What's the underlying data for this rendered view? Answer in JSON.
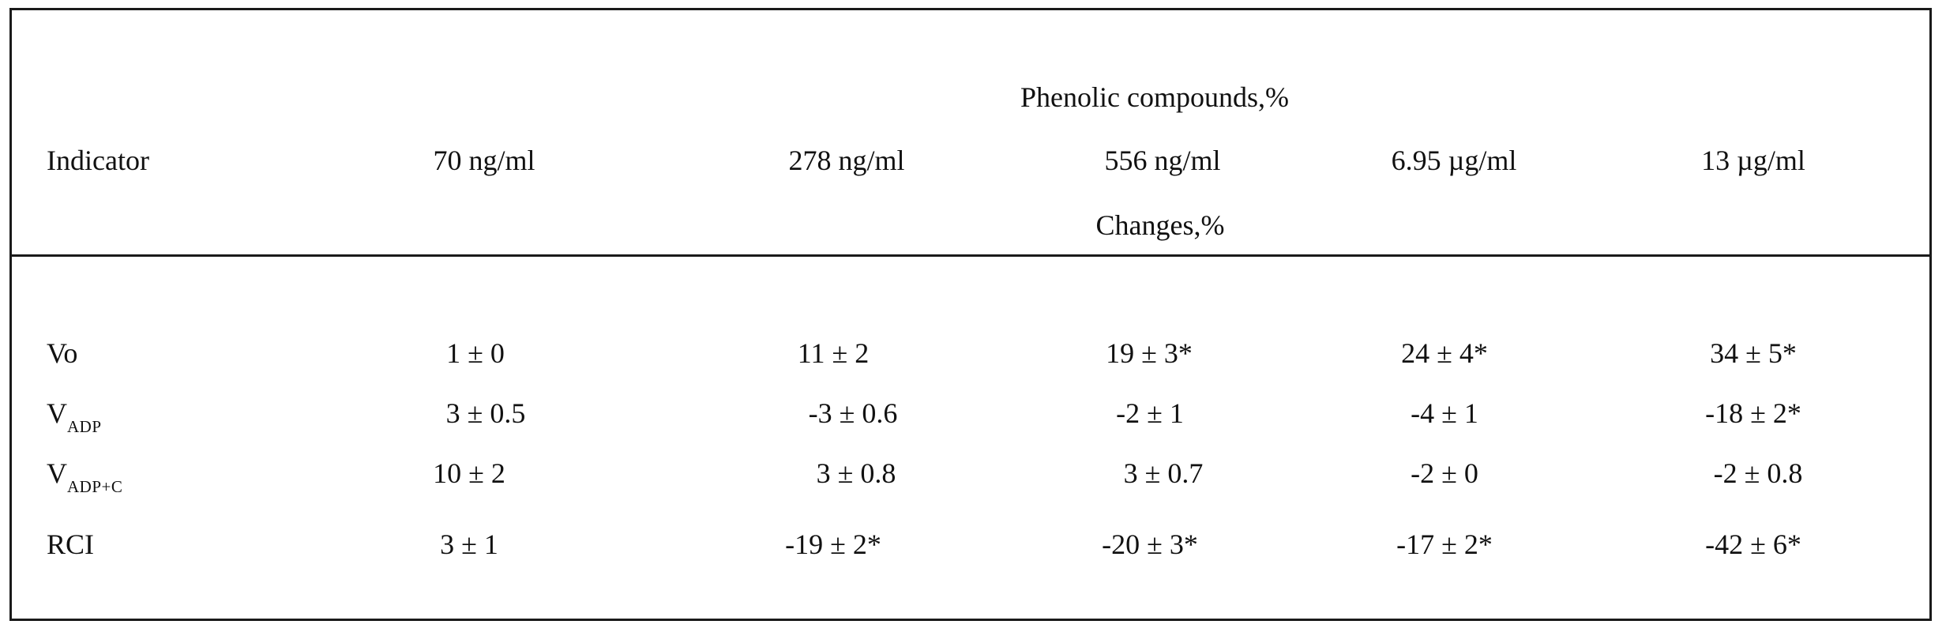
{
  "table": {
    "group_header": "Phenolic compounds,%",
    "indicator_header": "Indicator",
    "concentrations": [
      "70 ng/ml",
      "278 ng/ml",
      "556 ng/ml",
      "6.95 µg/ml",
      "13 µg/ml"
    ],
    "changes_header": "Changes,%",
    "rows": [
      {
        "label": "Vo",
        "label_sub": "",
        "values": [
          "1 ± 0",
          "11 ± 2",
          "19 ± 3*",
          "24 ± 4*",
          "34 ± 5*"
        ]
      },
      {
        "label": "V",
        "label_sub": "ADP",
        "values": [
          "3 ± 0.5",
          "-3 ± 0.6",
          "-2 ± 1",
          "-4 ± 1",
          "-18 ± 2*"
        ]
      },
      {
        "label": "V",
        "label_sub": "ADP+C",
        "values": [
          "10 ± 2",
          "3 ± 0.8",
          "3 ± 0.7",
          "-2 ± 0",
          "-2 ± 0.8"
        ]
      },
      {
        "label": "RCI",
        "label_sub": "",
        "values": [
          "3 ± 1",
          "-19 ± 2*",
          "-20 ± 3*",
          "-17 ± 2*",
          "-42 ± 6*"
        ]
      }
    ]
  }
}
